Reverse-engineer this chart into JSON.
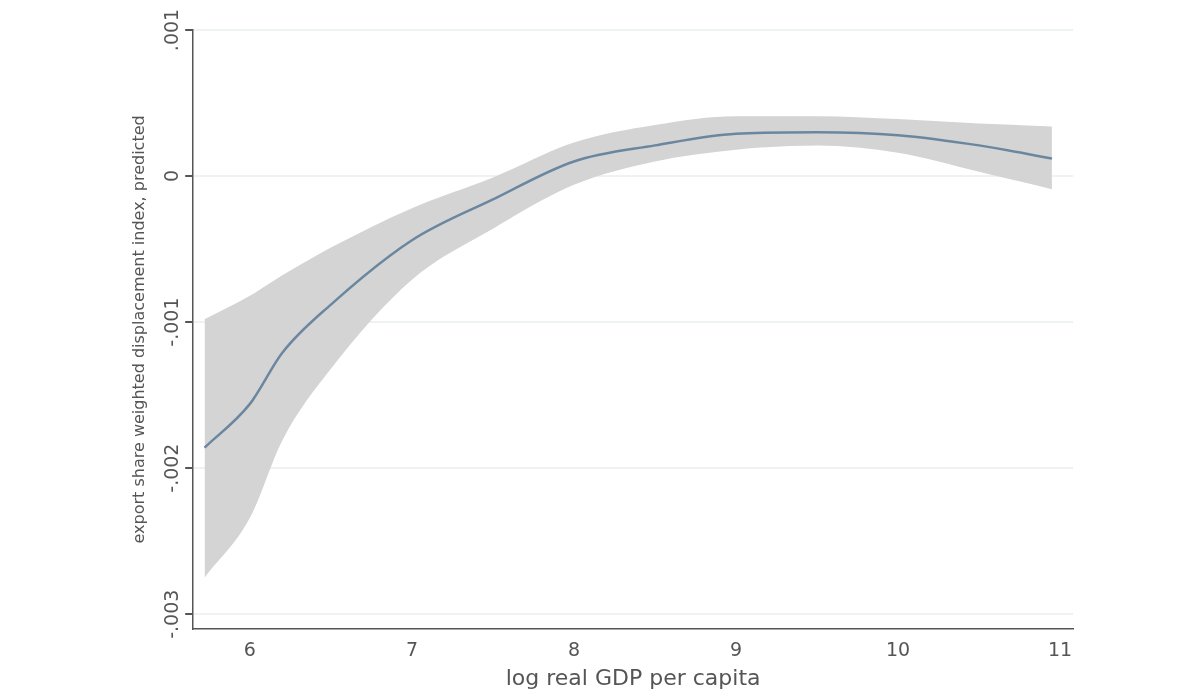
{
  "chart_data": {
    "type": "line",
    "xlabel": "log real GDP per capita",
    "ylabel": "export share weighted displacement index, predicted",
    "x": [
      5.72,
      6,
      6.2,
      6.5,
      7,
      7.5,
      8,
      8.5,
      9,
      9.5,
      10,
      10.5,
      10.95
    ],
    "series": [
      {
        "color": "#6b87a0",
        "values": [
          -0.00186,
          -0.00156,
          -0.00121,
          -0.00088,
          -0.00044,
          -0.00016,
          0.0001,
          0.00021,
          0.00029,
          0.0003,
          0.00028,
          0.00021,
          0.00012
        ],
        "lower": [
          -0.00275,
          -0.00234,
          -0.00181,
          -0.00132,
          -0.00071,
          -0.00036,
          -6e-05,
          0.0001,
          0.00018,
          0.00021,
          0.00016,
          3e-05,
          -9e-05
        ],
        "upper": [
          -0.00098,
          -0.00082,
          -0.00068,
          -0.00049,
          -0.00022,
          -1e-05,
          0.00023,
          0.00035,
          0.00041,
          0.00041,
          0.00039,
          0.00036,
          0.00034
        ]
      }
    ],
    "xlim": [
      5.65,
      11.08
    ],
    "xticks": [
      6,
      7,
      8,
      9,
      10,
      11
    ],
    "ylim": [
      -0.0031,
      0.001
    ],
    "yticks": [
      {
        "value": -0.003,
        "label": "-.003"
      },
      {
        "value": -0.002,
        "label": "-.002"
      },
      {
        "value": -0.001,
        "label": "-.001"
      },
      {
        "value": 0,
        "label": "0"
      },
      {
        "value": 0.001,
        "label": ".001"
      }
    ],
    "grid": "y",
    "legend": false,
    "marker": "none",
    "line_style": "solid"
  }
}
